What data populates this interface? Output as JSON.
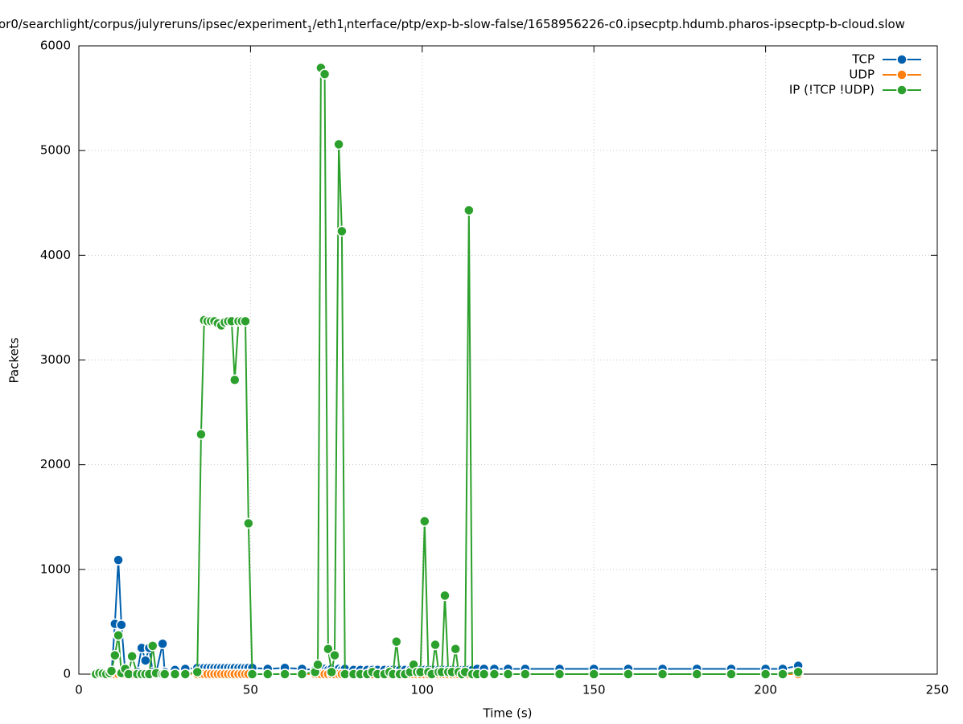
{
  "chart_data": {
    "type": "line",
    "title": [
      "or0/searchlight/corpus/julyreruns/ipsec/experiment",
      "1",
      "/eth1",
      "i",
      "nterface/ptp/exp-b-slow-false/1658956226-c0.ipsecptp.hdumb.pharos-ipsecptp-b-cloud.slow"
    ],
    "x_label": "Time (s)",
    "y_label": "Packets",
    "xlim": [
      0,
      250
    ],
    "xticks": [
      0,
      50,
      100,
      150,
      200,
      250
    ],
    "ylim": [
      0,
      6000
    ],
    "yticks": [
      0,
      1000,
      2000,
      3000,
      4000,
      5000,
      6000
    ],
    "grid": true,
    "legend": "top-right",
    "x": [
      5,
      6,
      7,
      8,
      9,
      9.5,
      10.5,
      11.5,
      12.4,
      13.5,
      14.5,
      15.5,
      17,
      18.3,
      19.4,
      20.5,
      21.5,
      22.5,
      24.4,
      25,
      28,
      31,
      34.5,
      35.6,
      36.5,
      37.5,
      38.5,
      39.5,
      40.5,
      41.5,
      42.5,
      43.5,
      44.5,
      45.4,
      46.5,
      47.5,
      48.5,
      49.4,
      50.5,
      55,
      60,
      65,
      68.8,
      69.6,
      70.5,
      71.6,
      72.6,
      73.6,
      74.5,
      75.7,
      76.6,
      77.5,
      80,
      82,
      84,
      85.5,
      87,
      89,
      90.5,
      91.5,
      92.5,
      93.5,
      95,
      96.5,
      97.5,
      98.5,
      99.5,
      100.7,
      101.8,
      102.8,
      103.8,
      104.8,
      105.7,
      106.6,
      107.6,
      108.7,
      109.7,
      110.6,
      111.6,
      112.5,
      113.6,
      114.6,
      116,
      118,
      121,
      125,
      130,
      140,
      150,
      160,
      170,
      180,
      190,
      200,
      205,
      209.5
    ],
    "series": [
      {
        "name": "TCP",
        "color": "#0060ad",
        "values": [
          0,
          20,
          10,
          0,
          10,
          0,
          480,
          1090,
          470,
          20,
          0,
          10,
          20,
          250,
          130,
          250,
          20,
          10,
          290,
          20,
          40,
          50,
          60,
          60,
          60,
          60,
          60,
          60,
          60,
          60,
          60,
          60,
          60,
          60,
          60,
          60,
          60,
          60,
          60,
          50,
          60,
          50,
          40,
          50,
          60,
          50,
          40,
          50,
          40,
          50,
          40,
          50,
          40,
          40,
          40,
          40,
          40,
          40,
          40,
          40,
          40,
          40,
          40,
          40,
          40,
          40,
          40,
          40,
          40,
          40,
          40,
          40,
          40,
          40,
          40,
          40,
          40,
          40,
          40,
          40,
          40,
          40,
          50,
          50,
          50,
          50,
          50,
          50,
          50,
          50,
          50,
          50,
          50,
          50,
          50,
          80
        ]
      },
      {
        "name": "UDP",
        "color": "#ff7f0e",
        "values": [
          0,
          0,
          0,
          0,
          0,
          0,
          0,
          0,
          0,
          0,
          0,
          0,
          0,
          0,
          0,
          0,
          0,
          0,
          0,
          0,
          0,
          0,
          0,
          0,
          0,
          0,
          0,
          0,
          0,
          0,
          0,
          0,
          0,
          0,
          0,
          0,
          0,
          0,
          0,
          0,
          0,
          0,
          0,
          0,
          0,
          0,
          0,
          0,
          0,
          0,
          0,
          0,
          0,
          0,
          0,
          0,
          0,
          0,
          0,
          0,
          0,
          0,
          0,
          0,
          0,
          0,
          0,
          0,
          0,
          0,
          0,
          0,
          0,
          0,
          0,
          0,
          0,
          0,
          0,
          0,
          0,
          0,
          0,
          0,
          0,
          0,
          0,
          0,
          0,
          0,
          0,
          0,
          0,
          0,
          0,
          0
        ]
      },
      {
        "name": "IP (!TCP  !UDP)",
        "color": "#2ca02c",
        "values": [
          0,
          10,
          5,
          0,
          10,
          30,
          180,
          370,
          10,
          50,
          0,
          170,
          0,
          0,
          0,
          0,
          270,
          10,
          0,
          0,
          0,
          0,
          20,
          2290,
          3380,
          3370,
          3370,
          3370,
          3350,
          3330,
          3360,
          3370,
          3370,
          2810,
          3370,
          3370,
          3370,
          1440,
          0,
          0,
          0,
          0,
          20,
          90,
          5790,
          5730,
          240,
          20,
          180,
          5060,
          4230,
          0,
          0,
          0,
          0,
          20,
          0,
          0,
          20,
          0,
          310,
          0,
          0,
          20,
          90,
          20,
          20,
          1460,
          20,
          0,
          280,
          20,
          20,
          750,
          20,
          20,
          240,
          20,
          0,
          20,
          4430,
          0,
          0,
          0,
          0,
          0,
          0,
          0,
          0,
          0,
          0,
          0,
          0,
          0,
          0,
          20
        ]
      }
    ]
  }
}
